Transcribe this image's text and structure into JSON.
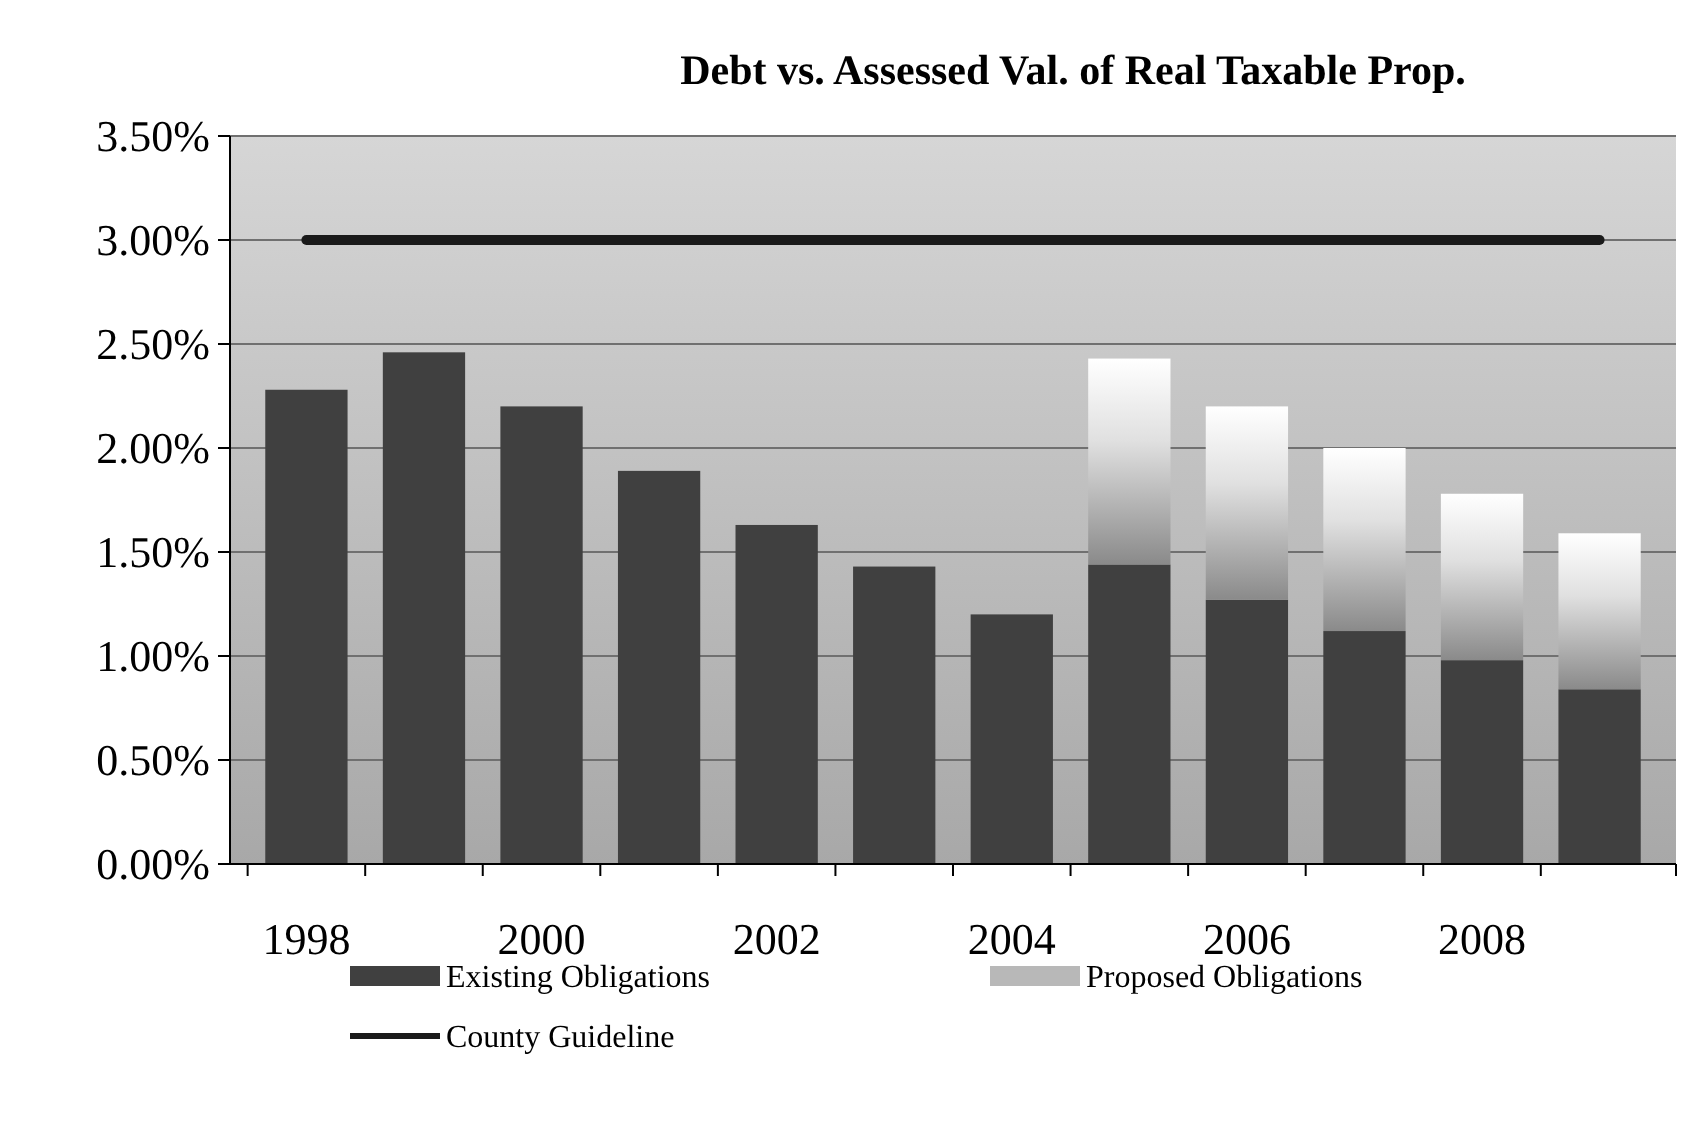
{
  "chart_data": {
    "type": "bar",
    "title": "Debt vs. Assessed Val. of Real Taxable Prop.",
    "categories": [
      "1998",
      null,
      "2000",
      null,
      "2002",
      null,
      "2004",
      null,
      "2006",
      null,
      "2008",
      null
    ],
    "stacked": true,
    "series": [
      {
        "name": "Existing Obligations",
        "color": "#404040",
        "values": [
          2.28,
          2.46,
          2.2,
          1.89,
          1.63,
          1.43,
          1.2,
          1.44,
          1.27,
          1.12,
          0.98,
          0.84
        ]
      },
      {
        "name": "Proposed Obligations",
        "color": "#e0e0e0",
        "values": [
          null,
          null,
          null,
          null,
          null,
          null,
          null,
          0.99,
          0.93,
          0.88,
          0.8,
          0.75
        ]
      },
      {
        "name": "County Guideline",
        "type": "line",
        "color": "#1a1a1a",
        "values": [
          3,
          3,
          3,
          3,
          3,
          3,
          3,
          3,
          3,
          3,
          3,
          3
        ]
      }
    ],
    "ylim": [
      0,
      3.5
    ],
    "yticks": [
      {
        "value": 0,
        "label": "0.00%"
      },
      {
        "value": 0.5,
        "label": "0.50%"
      },
      {
        "value": 1,
        "label": "1.00%"
      },
      {
        "value": 1.5,
        "label": "1.50%"
      },
      {
        "value": 2,
        "label": "2.00%"
      },
      {
        "value": 2.5,
        "label": "2.50%"
      },
      {
        "value": 3,
        "label": "3.00%"
      },
      {
        "value": 3.5,
        "label": "3.50%"
      }
    ],
    "grid": "y",
    "legend": "bottom"
  }
}
